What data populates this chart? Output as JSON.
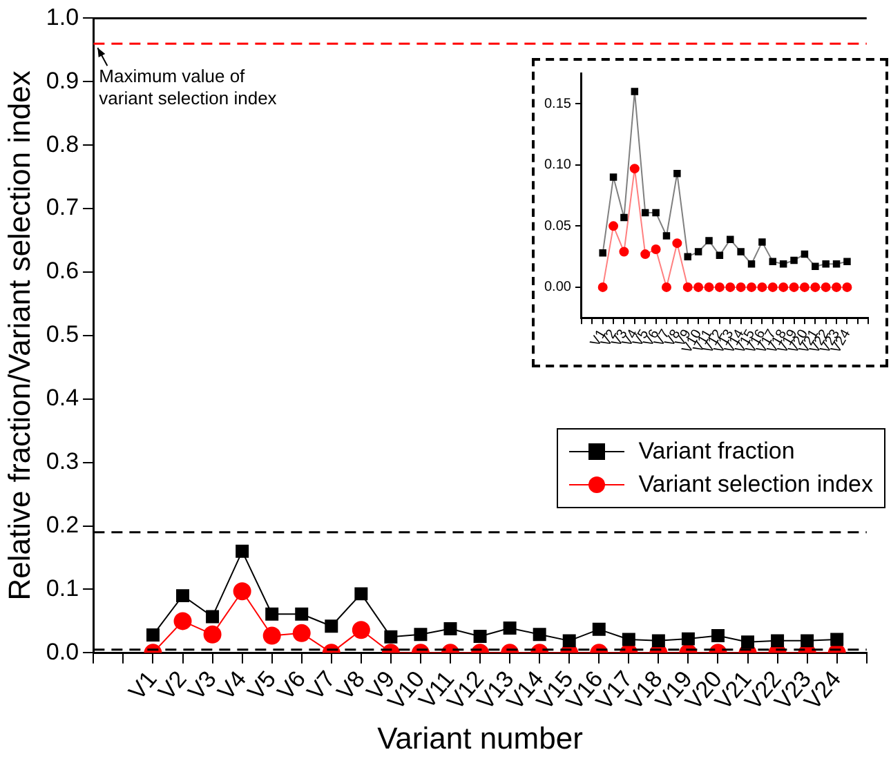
{
  "chart_data": [
    {
      "type": "line",
      "xlabel": "Variant number",
      "ylabel": "Relative fraction/Variant selection index",
      "categories": [
        null,
        null,
        "V1",
        "V2",
        "V3",
        "V4",
        "V5",
        "V6",
        "V7",
        "V8",
        "V9",
        "V10",
        "V11",
        "V12",
        "V13",
        "V14",
        "V15",
        "V16",
        "V17",
        "V18",
        "V19",
        "V20",
        "V21",
        "V22",
        "V23",
        "V24",
        null
      ],
      "series": [
        {
          "name": "Variant fraction",
          "color": "#000000",
          "marker": "square",
          "values": [
            null,
            null,
            0.028,
            0.09,
            0.057,
            0.16,
            0.061,
            0.061,
            0.042,
            0.093,
            0.025,
            0.029,
            0.038,
            0.026,
            0.039,
            0.029,
            0.019,
            0.037,
            0.021,
            0.019,
            0.022,
            0.027,
            0.017,
            0.019,
            0.019,
            0.021,
            null
          ]
        },
        {
          "name": "Variant selection index",
          "color": "#ff0000",
          "marker": "circle",
          "values": [
            null,
            null,
            0,
            0.05,
            0.029,
            0.097,
            0.027,
            0.031,
            0,
            0.036,
            0,
            0,
            0,
            0,
            0,
            0,
            0,
            0,
            0,
            0,
            0,
            0,
            0,
            0,
            0,
            0,
            null
          ]
        }
      ],
      "ylim": [
        0,
        1.0
      ],
      "yticks": [
        {
          "value": 0,
          "label": "0.0"
        },
        0.1,
        0.2,
        0.3,
        0.4,
        0.5,
        0.6,
        0.7,
        0.8,
        0.9,
        {
          "value": 1,
          "label": "1.0"
        }
      ],
      "ref_lines": [
        {
          "axis": "y",
          "value": 0.96,
          "label": "Maximum value of\nvariant selection index",
          "color": "#ff0000",
          "line_style": "dashed"
        },
        {
          "axis": "y",
          "value": 0.19,
          "color": "#000000",
          "line_style": "dashed"
        },
        {
          "axis": "y",
          "value": 0.005,
          "color": "#000000",
          "line_style": "dashed"
        }
      ],
      "grid": false,
      "legend": "right"
    },
    {
      "type": "line",
      "categories": [
        null,
        null,
        "V1",
        "V2",
        "V3",
        "V4",
        "V5",
        "V6",
        "V7",
        "V8",
        "V9",
        "V10",
        "V11",
        "V12",
        "V13",
        "V14",
        "V15",
        "V16",
        "V17",
        "V18",
        "V19",
        "V20",
        "V21",
        "V22",
        "V23",
        "V24",
        null,
        null
      ],
      "series": [
        {
          "color": "#000000",
          "marker": "square",
          "values": [
            null,
            null,
            0.028,
            0.09,
            0.057,
            0.16,
            0.061,
            0.061,
            0.042,
            0.093,
            0.025,
            0.029,
            0.038,
            0.026,
            0.039,
            0.029,
            0.019,
            0.037,
            0.021,
            0.019,
            0.022,
            0.027,
            0.017,
            0.019,
            0.019,
            0.021,
            null,
            null
          ]
        },
        {
          "color": "#ff0000",
          "marker": "circle",
          "values": [
            null,
            null,
            0,
            0.05,
            0.029,
            0.097,
            0.027,
            0.031,
            0,
            0.036,
            0,
            0,
            0,
            0,
            0,
            0,
            0,
            0,
            0,
            0,
            0,
            0,
            0,
            0,
            0,
            0,
            null,
            null
          ]
        }
      ],
      "ylim": [
        -0.025,
        0.175
      ],
      "yticks": [
        {
          "value": 0,
          "label": "0.00"
        },
        {
          "value": 0.05,
          "label": "0.05"
        },
        {
          "value": 0.1,
          "label": "0.10"
        },
        {
          "value": 0.15,
          "label": "0.15"
        }
      ],
      "grid": false,
      "legend": false
    }
  ]
}
